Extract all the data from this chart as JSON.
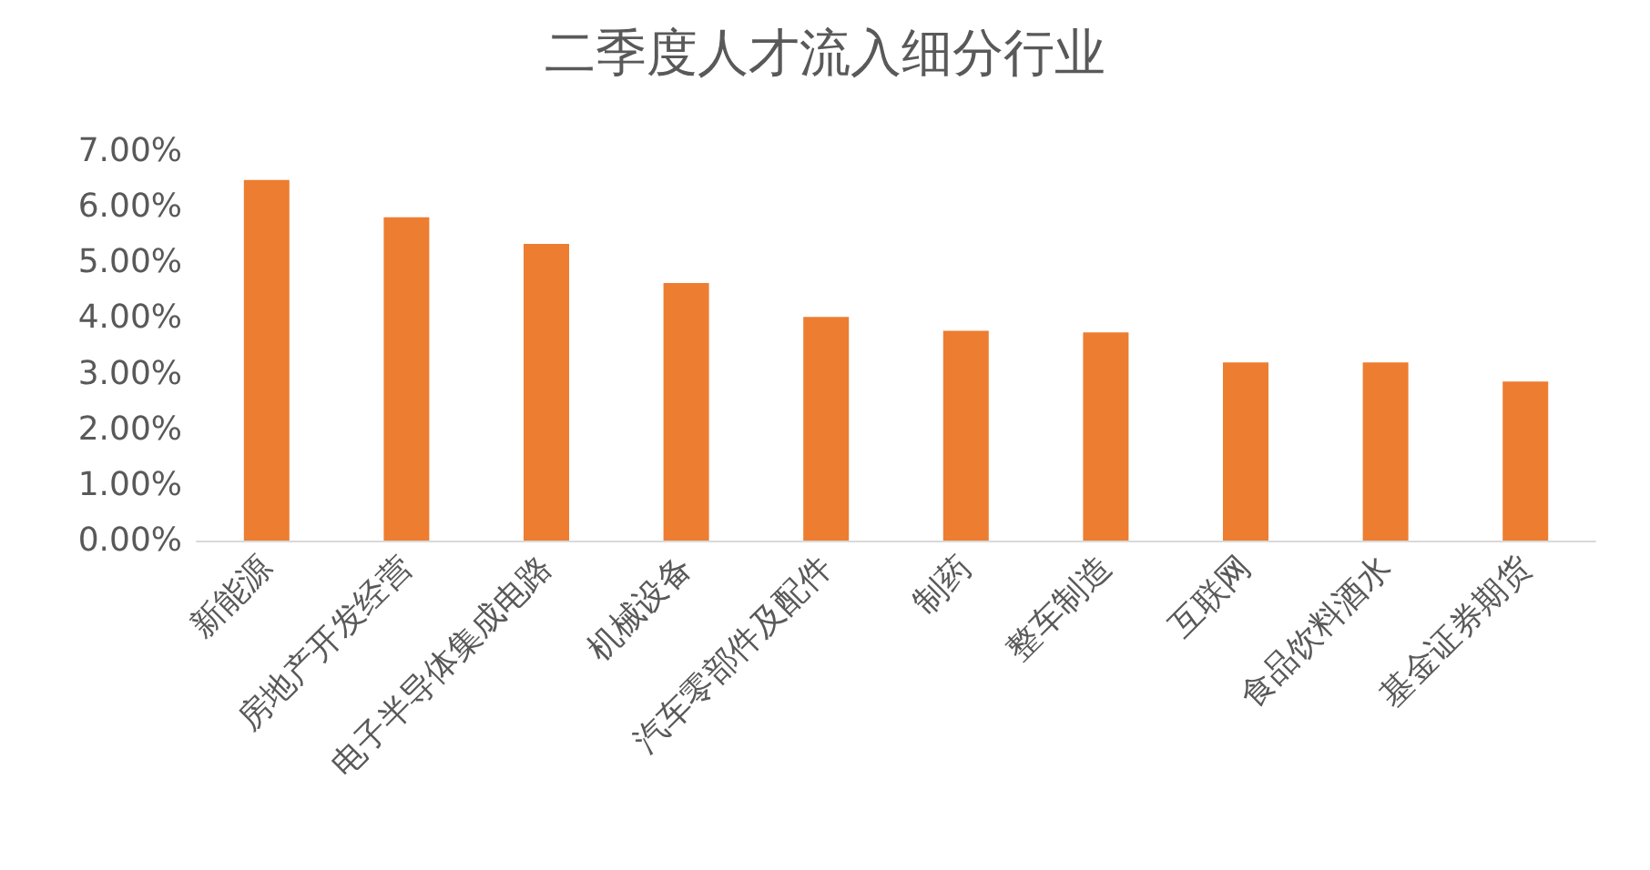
{
  "chart_data": {
    "type": "bar",
    "title": "二季度人才流入细分行业",
    "categories": [
      "新能源",
      "房地产开发经营",
      "电子半导体集成电路",
      "机械设备",
      "汽车零部件及配件",
      "制药",
      "整车制造",
      "互联网",
      "食品饮料酒水",
      "基金证券期货"
    ],
    "values": [
      6.48,
      5.81,
      5.33,
      4.63,
      4.02,
      3.77,
      3.74,
      3.2,
      3.2,
      2.86
    ],
    "color": "#ed7d31",
    "ylim": [
      0,
      7
    ],
    "yticks": [
      {
        "value": 0,
        "label": "0.00%"
      },
      {
        "value": 1,
        "label": "1.00%"
      },
      {
        "value": 2,
        "label": "2.00%"
      },
      {
        "value": 3,
        "label": "3.00%"
      },
      {
        "value": 4,
        "label": "4.00%"
      },
      {
        "value": 5,
        "label": "5.00%"
      },
      {
        "value": 6,
        "label": "6.00%"
      },
      {
        "value": 7,
        "label": "7.00%"
      }
    ],
    "grid": false
  }
}
